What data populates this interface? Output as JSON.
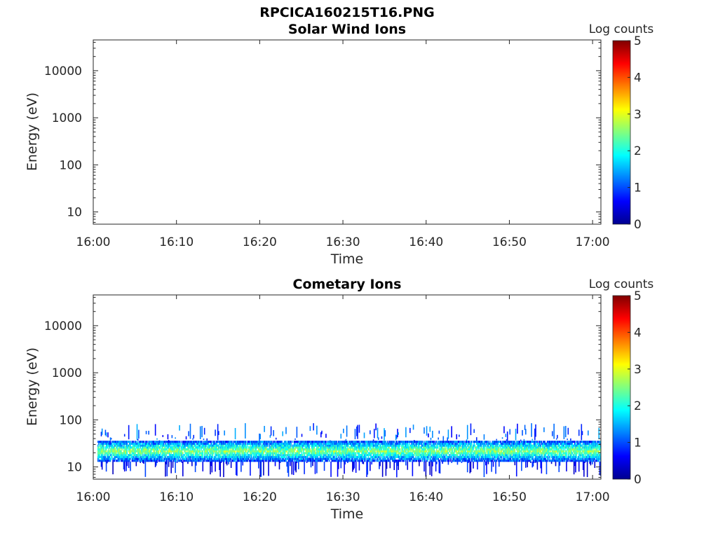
{
  "figure": {
    "title": "RPCICA160215T16.PNG"
  },
  "colormap": "jet",
  "chart_data": [
    {
      "type": "heatmap",
      "title": "Solar Wind Ions",
      "xlabel": "Time",
      "ylabel": "Energy (eV)",
      "x_range": [
        "16:00",
        "17:01"
      ],
      "x_ticks": [
        "16:00",
        "16:10",
        "16:20",
        "16:30",
        "16:40",
        "16:50",
        "17:00"
      ],
      "y_scale": "log",
      "ylim": [
        5.5,
        45000
      ],
      "y_ticks": [
        "10",
        "100",
        "1000",
        "10000"
      ],
      "colorbar": {
        "label": "Log counts",
        "range": [
          0,
          5
        ],
        "ticks": [
          "0",
          "1",
          "2",
          "3",
          "4",
          "5"
        ]
      },
      "data_description": "empty",
      "band": null
    },
    {
      "type": "heatmap",
      "title": "Cometary Ions",
      "xlabel": "Time",
      "ylabel": "Energy (eV)",
      "x_range": [
        "16:00",
        "17:01"
      ],
      "x_ticks": [
        "16:00",
        "16:10",
        "16:20",
        "16:30",
        "16:40",
        "16:50",
        "17:00"
      ],
      "y_scale": "log",
      "ylim": [
        5.5,
        45000
      ],
      "y_ticks": [
        "10",
        "100",
        "1000",
        "10000"
      ],
      "colorbar": {
        "label": "Log counts",
        "range": [
          0,
          5
        ],
        "ticks": [
          "0",
          "1",
          "2",
          "3",
          "4",
          "5"
        ]
      },
      "band": {
        "time_start": "16:00:30",
        "time_end": "17:01",
        "energy_min_eV": 13,
        "energy_max_eV": 36,
        "energy_peak_eV": 22,
        "peak_log_counts": 2.6,
        "edge_log_counts": 0.8,
        "sparse_max_energy_eV": 85,
        "sparse_min_energy_eV": 6
      }
    }
  ]
}
